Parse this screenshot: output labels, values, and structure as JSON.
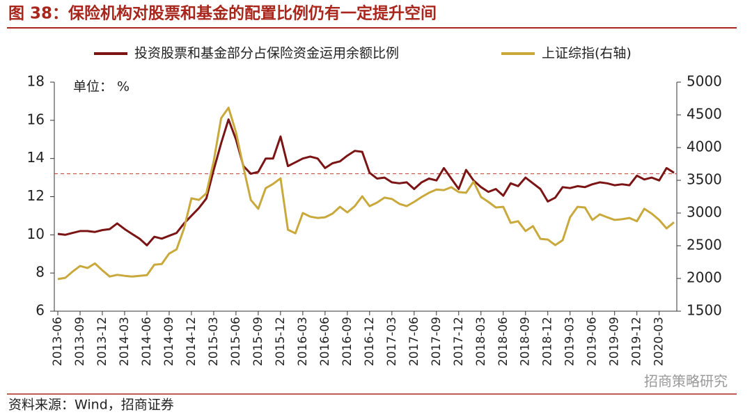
{
  "chart_data": {
    "type": "line",
    "title": "图 38：保险机构对股票和基金的配置比例仍有一定提升空间",
    "unit_label": "单位： %",
    "source": "资料来源：Wind，招商证券",
    "watermark": "招商策略研究",
    "categories": [
      "2013-06",
      null,
      null,
      "2013-09",
      null,
      null,
      "2013-12",
      null,
      null,
      "2014-03",
      null,
      null,
      "2014-06",
      null,
      null,
      "2014-09",
      null,
      null,
      "2014-12",
      null,
      null,
      "2015-03",
      null,
      null,
      "2015-06",
      null,
      null,
      "2015-09",
      null,
      null,
      "2015-12",
      null,
      null,
      "2016-03",
      null,
      null,
      "2016-06",
      null,
      null,
      "2016-09",
      null,
      null,
      "2016-12",
      null,
      null,
      "2017-03",
      null,
      null,
      "2017-06",
      null,
      null,
      "2017-09",
      null,
      null,
      "2017-12",
      null,
      null,
      "2018-03",
      null,
      null,
      "2018-06",
      null,
      null,
      "2018-09",
      null,
      null,
      "2018-12",
      null,
      null,
      "2019-03",
      null,
      null,
      "2019-06",
      null,
      null,
      "2019-09",
      null,
      null,
      "2019-12",
      null,
      null,
      "2020-03",
      null,
      null
    ],
    "series": [
      {
        "name": "投资股票和基金部分占保险资金运用余额比例",
        "color": "#7b1414",
        "axis": "y",
        "values": [
          10.05,
          10.0,
          10.1,
          10.2,
          10.2,
          10.15,
          10.25,
          10.3,
          10.6,
          10.3,
          10.05,
          9.8,
          9.45,
          9.9,
          9.8,
          9.95,
          10.1,
          10.6,
          11.0,
          11.4,
          11.9,
          13.4,
          14.8,
          16.05,
          15.0,
          13.6,
          13.2,
          13.3,
          14.0,
          14.0,
          15.15,
          13.6,
          13.8,
          14.0,
          14.1,
          14.0,
          13.5,
          13.75,
          13.85,
          14.15,
          14.4,
          14.35,
          13.25,
          12.95,
          13.0,
          12.75,
          12.7,
          12.75,
          12.4,
          12.75,
          12.95,
          12.85,
          13.5,
          12.95,
          12.4,
          13.4,
          12.85,
          12.5,
          12.25,
          12.4,
          12.05,
          12.7,
          12.55,
          13.0,
          12.7,
          12.4,
          11.75,
          11.95,
          12.5,
          12.45,
          12.55,
          12.5,
          12.65,
          12.75,
          12.7,
          12.6,
          12.65,
          12.6,
          13.1,
          12.9,
          13.0,
          12.85,
          13.5,
          13.25
        ]
      },
      {
        "name": "上证综指(右轴)",
        "color": "#c9a93c",
        "axis": "y2",
        "values": [
          1990,
          2010,
          2105,
          2190,
          2160,
          2230,
          2125,
          2030,
          2055,
          2040,
          2030,
          2040,
          2050,
          2210,
          2220,
          2380,
          2445,
          2765,
          3225,
          3200,
          3300,
          3790,
          4450,
          4610,
          4235,
          3700,
          3200,
          3065,
          3380,
          3445,
          3530,
          2745,
          2690,
          3000,
          2945,
          2925,
          2935,
          2990,
          3095,
          3010,
          3105,
          3255,
          3105,
          3160,
          3235,
          3215,
          3140,
          3105,
          3170,
          3245,
          3310,
          3360,
          3350,
          3395,
          3320,
          3310,
          3480,
          3245,
          3170,
          3085,
          3095,
          2850,
          2875,
          2725,
          2800,
          2605,
          2595,
          2510,
          2585,
          2935,
          3095,
          3085,
          2895,
          2980,
          2935,
          2895,
          2905,
          2925,
          2875,
          3065,
          2990,
          2895,
          2765,
          2860
        ]
      }
    ],
    "ylim": [
      6,
      18
    ],
    "yticks": [
      6,
      8,
      10,
      12,
      14,
      16,
      18
    ],
    "y2lim": [
      1500,
      5000
    ],
    "y2ticks": [
      1500,
      2000,
      2500,
      3000,
      3500,
      4000,
      4500,
      5000
    ],
    "hline": 13.2,
    "hline_color": "#c0392b",
    "legend": "top"
  }
}
